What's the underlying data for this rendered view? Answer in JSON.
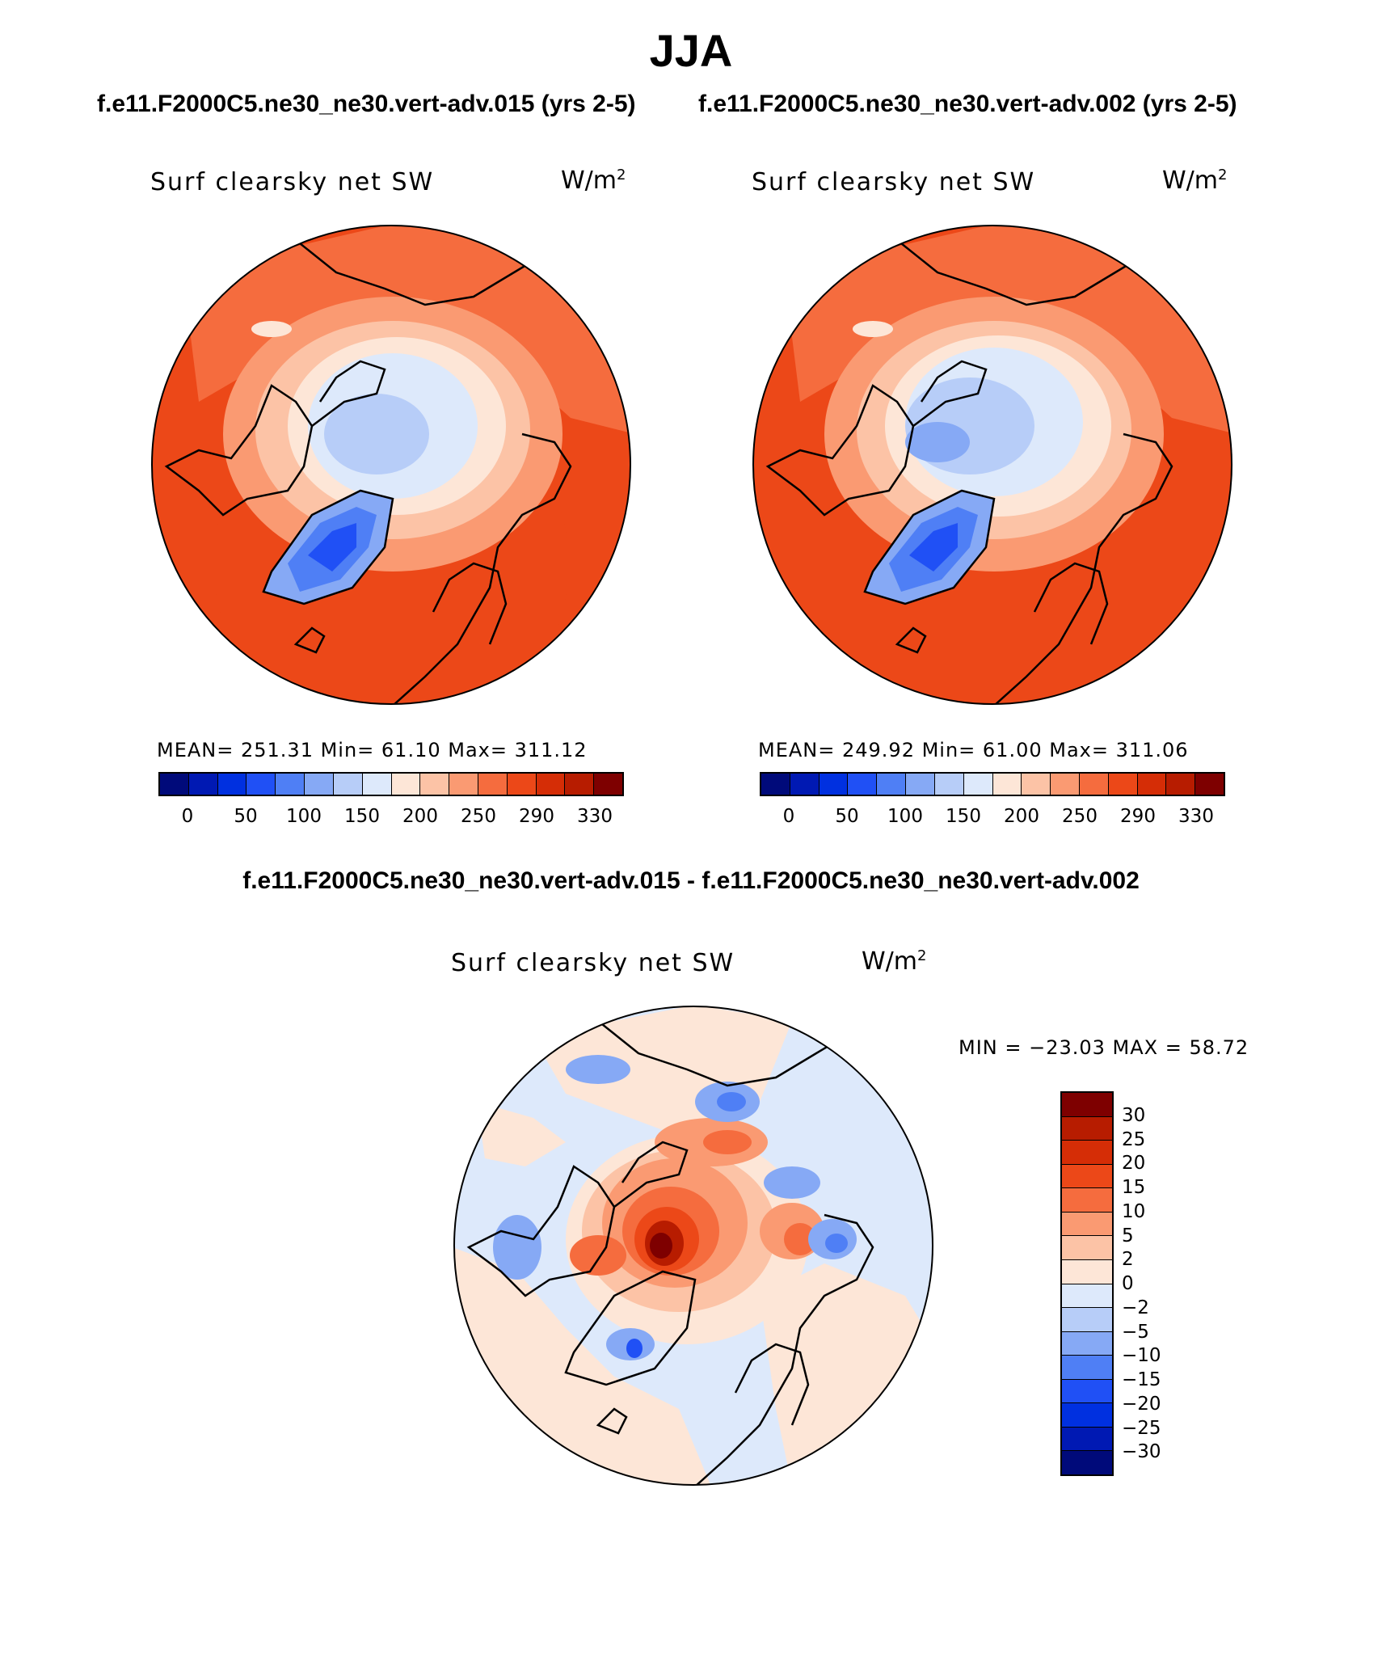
{
  "title": "JJA",
  "panels": [
    {
      "case": "f.e11.F2000C5.ne30_ne30.vert-adv.015 (yrs 2-5)",
      "variable": "Surf clearsky net SW",
      "units_base": "W/m",
      "units_exp": "2",
      "stats": "MEAN= 251.31   Min=   61.10   Max= 311.12"
    },
    {
      "case": "f.e11.F2000C5.ne30_ne30.vert-adv.002 (yrs 2-5)",
      "variable": "Surf clearsky net SW",
      "units_base": "W/m",
      "units_exp": "2",
      "stats": "MEAN= 249.92   Min=   61.00   Max= 311.06"
    }
  ],
  "diff": {
    "title": "f.e11.F2000C5.ne30_ne30.vert-adv.015 - f.e11.F2000C5.ne30_ne30.vert-adv.002",
    "variable": "Surf clearsky net SW",
    "units_base": "W/m",
    "units_exp": "2",
    "minmax": "MIN = −23.03 MAX =   58.72"
  },
  "colorbar_abs": {
    "colors": [
      "#000a7a",
      "#0019b3",
      "#0030e0",
      "#2050f5",
      "#4f7ff5",
      "#86a9f5",
      "#b7cdf8",
      "#dde9fb",
      "#fde6d7",
      "#fcc3a6",
      "#fa9a72",
      "#f56c3e",
      "#ec4818",
      "#d52d06",
      "#b71c00",
      "#7e0000"
    ],
    "ticks": [
      "0",
      "50",
      "100",
      "150",
      "200",
      "250",
      "290",
      "330"
    ]
  },
  "colorbar_diff": {
    "colors": [
      "#7e0000",
      "#b71c00",
      "#d52d06",
      "#ec4818",
      "#f56c3e",
      "#fa9a72",
      "#fcc3a6",
      "#fde6d7",
      "#dde9fb",
      "#b7cdf8",
      "#86a9f5",
      "#4f7ff5",
      "#2050f5",
      "#0030e0",
      "#0019b3",
      "#000a7a"
    ],
    "ticks": [
      "30",
      "25",
      "20",
      "15",
      "10",
      "5",
      "2",
      "0",
      "−2",
      "−5",
      "−10",
      "−15",
      "−20",
      "−25",
      "−30"
    ]
  }
}
